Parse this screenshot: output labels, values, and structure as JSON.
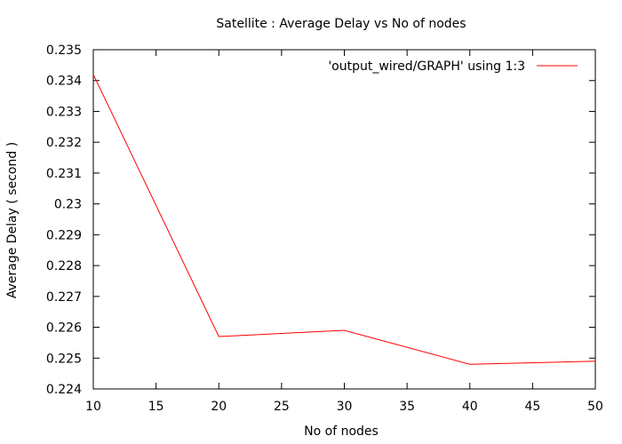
{
  "chart_data": {
    "type": "line",
    "title": "Satellite : Average Delay vs No of nodes",
    "xlabel": "No of nodes",
    "ylabel": "Average Delay ( second )",
    "xlim": [
      10,
      50
    ],
    "ylim": [
      0.224,
      0.235
    ],
    "x_ticks": [
      "10",
      "15",
      "20",
      "25",
      "30",
      "35",
      "40",
      "45",
      "50"
    ],
    "y_ticks": [
      "0.224",
      "0.225",
      "0.226",
      "0.227",
      "0.228",
      "0.229",
      "0.23",
      "0.231",
      "0.232",
      "0.233",
      "0.234",
      "0.235"
    ],
    "grid": false,
    "legend_position": "top-right",
    "series": [
      {
        "name": "'output_wired/GRAPH' using 1:3",
        "color": "#ff0000",
        "x": [
          10,
          20,
          30,
          40,
          50
        ],
        "y": [
          0.2342,
          0.2257,
          0.2259,
          0.2248,
          0.2249
        ]
      }
    ]
  }
}
